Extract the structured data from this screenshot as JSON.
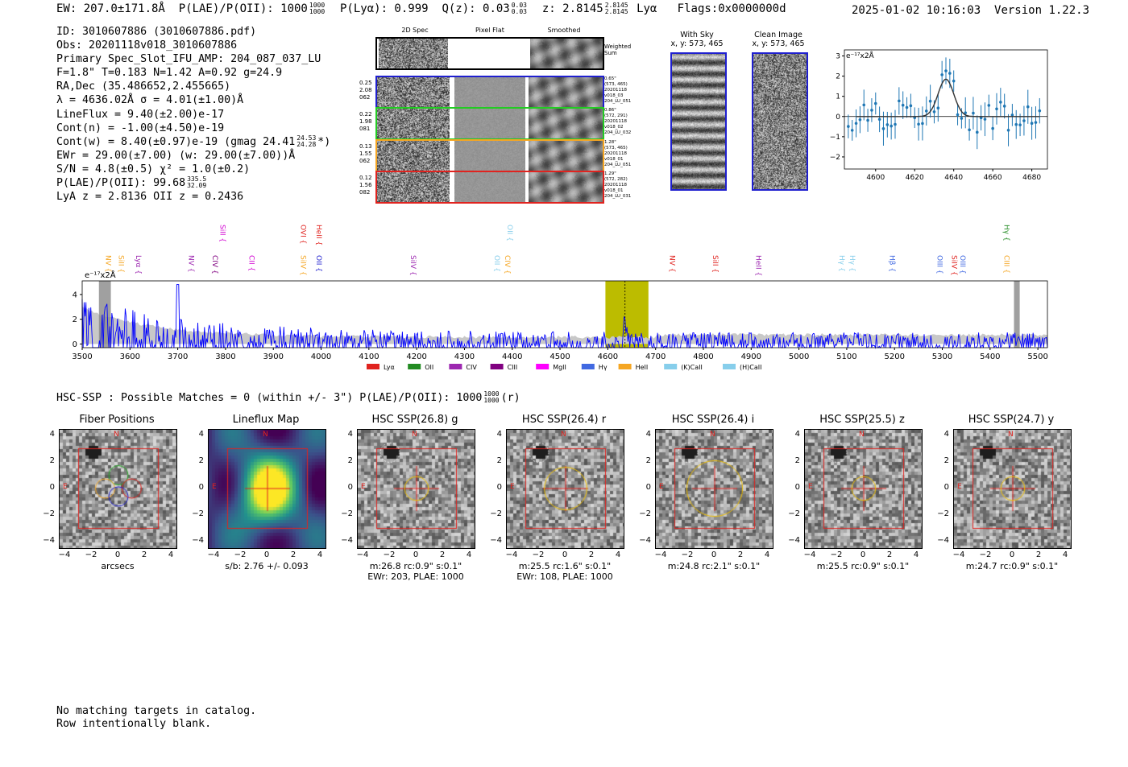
{
  "header": {
    "ew_label": "EW: 207.0±171.8Å",
    "plae_label": "P(LAE)/P(OII): 1000",
    "plae_hi": "1000",
    "plae_lo": "1000",
    "plya_label": "P(Lyα): 0.999",
    "qz_label": "Q(z): 0.03",
    "qz_hi": "0.03",
    "qz_lo": "0.03",
    "z_label": "z: 2.8145",
    "z_hi": "2.8145",
    "z_lo": "2.8145",
    "line_label": "Lyα",
    "flags_label": "Flags:0x0000000d",
    "timestamp": "2025-01-02 10:16:03",
    "version": "Version 1.22.3"
  },
  "info": {
    "id": "ID: 3010607886 (3010607886.pdf)",
    "obs": "Obs: 20201118v018_3010607886",
    "primary": "Primary Spec_Slot_IFU_AMP: 204_087_037_LU",
    "fit": "F=1.8\"  T=0.183  N=1.42  A=0.92  g=24.9",
    "radec": "RA,Dec (35.486652,2.455665)",
    "lambda": "λ = 4636.02Å   σ = 4.01(±1.00)Å",
    "lineflux": "LineFlux = 9.40(±2.00)e-17",
    "contn": "Cont(n) = -1.00(±4.50)e-19",
    "contw": "Cont(w) = 8.40(±0.97)e-19 (gmag 24.41",
    "contw_hi": "24.53",
    "contw_lo": "24.28",
    "contw_end": "*)",
    "ewr": "EWr = 29.00(±7.00) (w: 29.00(±7.00))Å",
    "sn": "S/N = 4.8(±0.5)  χ² = 1.0(±0.2)",
    "plae": "P(LAE)/P(OII): 99.68",
    "plae_hi": "335.5",
    "plae_lo": "32.09",
    "lyaz": "LyA z = 2.8136   OII z = 0.2436"
  },
  "spec2d": {
    "col_headers": [
      "2D Spec",
      "Pixel Flat",
      "Smoothed"
    ],
    "weighted_label": "Weighted\nSum",
    "rows": [
      {
        "left": "0.25\n2.08\n062",
        "right": "0.65\"\n(573, 465)\n20201118\nv018_03\n204_LU_051",
        "color": "#1f1fcf"
      },
      {
        "left": "0.22\n1.98\n081",
        "right": "0.86\"\n(572, 291)\n20201118\nv018_02\n204_LU_032",
        "color": "#22cc22"
      },
      {
        "left": "0.13\n1.55\n062",
        "right": "1.28\"\n(573, 465)\n20201118\nv018_01\n204_LU_051",
        "color": "#f5a623"
      },
      {
        "left": "0.12\n1.56\n082",
        "right": "1.29\"\n(572, 282)\n20201118\nv018_01\n204_LU_031",
        "color": "#e0231f"
      }
    ]
  },
  "sky_panels": {
    "with_sky_title": "With Sky",
    "with_sky_coords": "x, y: 573, 465",
    "clean_title": "Clean Image",
    "clean_coords": "x, y: 573, 465"
  },
  "zoom_chart": {
    "type": "scatter",
    "unit_label": "e⁻¹⁷x2Å",
    "xlim": [
      4584,
      4688
    ],
    "ylim": [
      -2.6,
      3.3
    ],
    "xticks": [
      "4600",
      "4620",
      "4640",
      "4660",
      "4680"
    ],
    "yticks": [
      "3",
      "2",
      "1",
      "0",
      "−1",
      "−2"
    ]
  },
  "chart_data": {
    "type": "line",
    "unit_label": "e⁻¹⁷x2Å",
    "xlim": [
      3500,
      5520
    ],
    "ylim": [
      -0.3,
      5.1
    ],
    "xticks": [
      "3500",
      "3600",
      "3700",
      "3800",
      "3900",
      "4000",
      "4100",
      "4200",
      "4300",
      "4400",
      "4500",
      "4600",
      "4700",
      "4800",
      "4900",
      "5000",
      "5100",
      "5200",
      "5300",
      "5400",
      "5500"
    ],
    "yticks": [
      "4",
      "2",
      "0"
    ],
    "highlight_band": [
      4595,
      4685
    ],
    "line_center": 4636,
    "lines": [
      {
        "label": "NV",
        "wave": 3545,
        "color": "#f5a623"
      },
      {
        "label": "SiII",
        "wave": 3572,
        "color": "#f5a623"
      },
      {
        "label": "Lyα",
        "wave": 3608,
        "color": "#9c27b0"
      },
      {
        "label": "NV",
        "wave": 3718,
        "color": "#9c27b0"
      },
      {
        "label": "CIV",
        "wave": 3768,
        "color": "#800080"
      },
      {
        "label": "SiII",
        "wave": 3784,
        "color": "#d100d1"
      },
      {
        "label": "CII",
        "wave": 3845,
        "color": "#d100d1"
      },
      {
        "label": "SiIV",
        "wave": 3953,
        "color": "#f5a623"
      },
      {
        "label": "OVI",
        "wave": 3953,
        "color": "#e0231f"
      },
      {
        "label": "OII",
        "wave": 3986,
        "color": "#1f1fcf"
      },
      {
        "label": "HeII",
        "wave": 3986,
        "color": "#e0231f"
      },
      {
        "label": "SiIV",
        "wave": 4183,
        "color": "#9c27b0"
      },
      {
        "label": "OII",
        "wave": 4358,
        "color": "#87ceeb"
      },
      {
        "label": "CIV",
        "wave": 4380,
        "color": "#f5a623"
      },
      {
        "label": "OII",
        "wave": 4385,
        "color": "#87ceeb"
      },
      {
        "label": "NV",
        "wave": 4725,
        "color": "#e0231f"
      },
      {
        "label": "SiII",
        "wave": 4815,
        "color": "#e0231f"
      },
      {
        "label": "HeII",
        "wave": 4905,
        "color": "#9c27b0"
      },
      {
        "label": "Hγ",
        "wave": 5080,
        "color": "#87ceeb"
      },
      {
        "label": "Hγ",
        "wave": 5102,
        "color": "#87ceeb"
      },
      {
        "label": "Hβ",
        "wave": 5185,
        "color": "#4169e1"
      },
      {
        "label": "OIII",
        "wave": 5285,
        "color": "#4169e1"
      },
      {
        "label": "SiIV",
        "wave": 5315,
        "color": "#e0231f"
      },
      {
        "label": "OIII",
        "wave": 5333,
        "color": "#4169e1"
      },
      {
        "label": "CIII",
        "wave": 5425,
        "color": "#f5a623"
      },
      {
        "label": "Hγ",
        "wave": 5425,
        "color": "#228b22"
      }
    ],
    "legend": [
      {
        "label": "Lyα",
        "color": "#e0231f"
      },
      {
        "label": "OII",
        "color": "#228b22"
      },
      {
        "label": "CIV",
        "color": "#9c27b0"
      },
      {
        "label": "CIII",
        "color": "#800080"
      },
      {
        "label": "MgII",
        "color": "#ff00ff"
      },
      {
        "label": "Hγ",
        "color": "#4169e1"
      },
      {
        "label": "HeII",
        "color": "#f5a623"
      },
      {
        "label": "(K)CaII",
        "color": "#87ceeb"
      },
      {
        "label": "(H)CaII",
        "color": "#87ceeb"
      }
    ],
    "series": [
      {
        "name": "flux",
        "color": "#0000ff"
      },
      {
        "name": "error",
        "color": "#c0c0c0"
      }
    ]
  },
  "hsc": {
    "title": "HSC-SSP : Possible Matches = 0 (within +/- 3\")  P(LAE)/P(OII): 1000",
    "plae_hi": "1000",
    "plae_lo": "1000",
    "plae_suffix": "(r)",
    "cutouts": [
      {
        "title": "Fiber Positions",
        "caption1": "arcsecs",
        "caption2": "",
        "aperture": 0,
        "bg": "gray"
      },
      {
        "title": "Lineflux Map",
        "caption1": "s/b: 2.76 +/- 0.093",
        "caption2": "",
        "aperture": 0,
        "bg": "viridis"
      },
      {
        "title": "HSC SSP(26.8) g",
        "caption1": "m:26.8 rc:0.9\"  s:0.1\"",
        "caption2": "EWr: 203, PLAE: 1000",
        "aperture": 0.9,
        "bg": "gray"
      },
      {
        "title": "HSC SSP(26.4) r",
        "caption1": "m:25.5 rc:1.6\"  s:0.1\"",
        "caption2": "EWr: 108, PLAE: 1000",
        "aperture": 1.6,
        "bg": "gray"
      },
      {
        "title": "HSC SSP(26.4) i",
        "caption1": "m:24.8 rc:2.1\"  s:0.1\"",
        "caption2": "",
        "aperture": 2.1,
        "bg": "gray"
      },
      {
        "title": "HSC SSP(25.5) z",
        "caption1": "m:25.5 rc:0.9\"  s:0.1\"",
        "caption2": "",
        "aperture": 0.9,
        "bg": "gray"
      },
      {
        "title": "HSC SSP(24.7) y",
        "caption1": "m:24.7 rc:0.9\"  s:0.1\"",
        "caption2": "",
        "aperture": 0.9,
        "bg": "gray"
      }
    ],
    "axis_ticks": [
      "−4",
      "−2",
      "0",
      "2",
      "4"
    ],
    "compass_n": "N",
    "compass_e": "E"
  },
  "footer": {
    "line1": "No matching targets in catalog.",
    "line2": "Row intentionally blank."
  }
}
